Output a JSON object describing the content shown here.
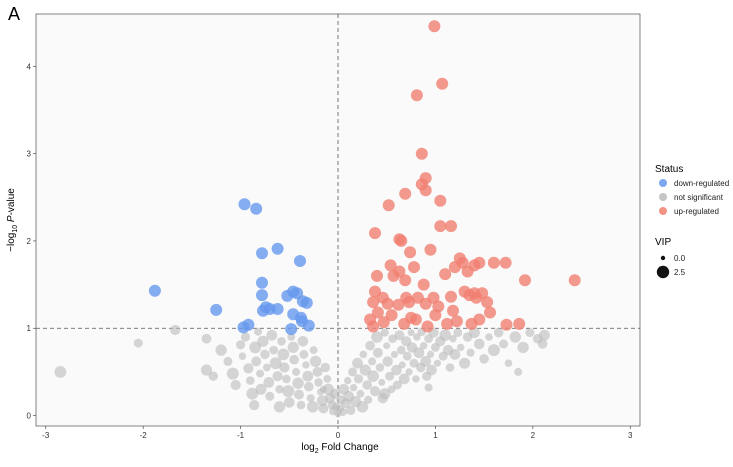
{
  "panel_label": "A",
  "chart_data": {
    "type": "scatter",
    "subtype": "volcano",
    "title": "",
    "xlabel_base": "log",
    "xlabel_sub": "2",
    "xlabel_rest": " Fold Change",
    "ylabel_neg": "−log",
    "ylabel_sub": "10",
    "ylabel_p": " P",
    "ylabel_rest": "-value",
    "xlim": [
      -3.1,
      3.1
    ],
    "ylim": [
      -0.12,
      4.6
    ],
    "x_ticks": [
      -3,
      -2,
      -1,
      0,
      1,
      2,
      3
    ],
    "y_ticks": [
      0,
      1,
      2,
      3,
      4
    ],
    "threshold_y": 1,
    "threshold_x": 0,
    "legend": {
      "status_title": "Status",
      "status_items": [
        {
          "label": "down-regulated",
          "color": "#6699EE"
        },
        {
          "label": "not significant",
          "color": "#BBBBBB"
        },
        {
          "label": "up-regulated",
          "color": "#F08070"
        }
      ],
      "vip_title": "VIP",
      "vip_items": [
        {
          "label": "0.0",
          "vip": 0.0
        },
        {
          "label": "2.5",
          "vip": 2.5
        }
      ]
    },
    "series": [
      {
        "name": "down-regulated",
        "color": "#6699EE",
        "points": [
          [
            -1.88,
            1.43
          ],
          [
            -1.25,
            1.21
          ],
          [
            -0.97,
            1.01
          ],
          [
            -0.92,
            1.04
          ],
          [
            -0.96,
            2.42
          ],
          [
            -0.84,
            2.37
          ],
          [
            -0.78,
            1.86
          ],
          [
            -0.78,
            1.52
          ],
          [
            -0.78,
            1.38
          ],
          [
            -0.74,
            1.24
          ],
          [
            -0.7,
            1.22
          ],
          [
            -0.77,
            1.2
          ],
          [
            -0.62,
            1.91
          ],
          [
            -0.62,
            1.22
          ],
          [
            -0.52,
            1.37
          ],
          [
            -0.46,
            1.42
          ],
          [
            -0.46,
            1.16
          ],
          [
            -0.39,
            1.77
          ],
          [
            -0.42,
            1.4
          ],
          [
            -0.36,
            1.31
          ],
          [
            -0.32,
            1.29
          ],
          [
            -0.37,
            1.08
          ],
          [
            -0.3,
            1.03
          ],
          [
            -0.38,
            1.12
          ],
          [
            -0.48,
            0.99
          ]
        ]
      },
      {
        "name": "up-regulated",
        "color": "#F08070",
        "points": [
          [
            0.99,
            4.46
          ],
          [
            1.07,
            3.8
          ],
          [
            0.81,
            3.67
          ],
          [
            0.86,
            3.0
          ],
          [
            0.9,
            2.72
          ],
          [
            0.86,
            2.65
          ],
          [
            0.9,
            2.58
          ],
          [
            0.69,
            2.54
          ],
          [
            1.05,
            2.46
          ],
          [
            0.52,
            2.41
          ],
          [
            0.38,
            2.09
          ],
          [
            1.05,
            2.17
          ],
          [
            1.16,
            2.17
          ],
          [
            0.63,
            2.02
          ],
          [
            0.65,
            2.0
          ],
          [
            0.74,
            1.87
          ],
          [
            0.95,
            1.9
          ],
          [
            0.54,
            1.72
          ],
          [
            0.63,
            1.65
          ],
          [
            0.78,
            1.7
          ],
          [
            0.4,
            1.6
          ],
          [
            0.57,
            1.6
          ],
          [
            0.69,
            1.55
          ],
          [
            0.88,
            1.5
          ],
          [
            1.1,
            1.62
          ],
          [
            1.2,
            1.7
          ],
          [
            1.25,
            1.8
          ],
          [
            1.28,
            1.75
          ],
          [
            1.33,
            1.65
          ],
          [
            1.4,
            1.72
          ],
          [
            1.45,
            1.75
          ],
          [
            1.6,
            1.75
          ],
          [
            1.72,
            1.75
          ],
          [
            1.92,
            1.55
          ],
          [
            2.43,
            1.55
          ],
          [
            0.38,
            1.42
          ],
          [
            0.46,
            1.35
          ],
          [
            0.36,
            1.3
          ],
          [
            0.51,
            1.28
          ],
          [
            0.62,
            1.27
          ],
          [
            0.7,
            1.35
          ],
          [
            0.73,
            1.3
          ],
          [
            0.82,
            1.35
          ],
          [
            0.9,
            1.28
          ],
          [
            0.98,
            1.35
          ],
          [
            1.03,
            1.25
          ],
          [
            1.16,
            1.36
          ],
          [
            1.3,
            1.42
          ],
          [
            1.35,
            1.38
          ],
          [
            1.4,
            1.4
          ],
          [
            1.42,
            1.35
          ],
          [
            1.48,
            1.4
          ],
          [
            1.53,
            1.3
          ],
          [
            1.56,
            1.18
          ],
          [
            0.33,
            1.1
          ],
          [
            0.41,
            1.18
          ],
          [
            0.47,
            1.07
          ],
          [
            0.55,
            1.15
          ],
          [
            0.68,
            1.05
          ],
          [
            0.75,
            1.12
          ],
          [
            0.8,
            1.1
          ],
          [
            0.92,
            1.02
          ],
          [
            1.0,
            1.15
          ],
          [
            1.12,
            1.05
          ],
          [
            1.22,
            1.08
          ],
          [
            1.37,
            1.05
          ],
          [
            1.45,
            1.1
          ],
          [
            1.73,
            1.04
          ],
          [
            1.86,
            1.05
          ],
          [
            0.36,
            1.02
          ],
          [
            1.18,
            1.2
          ]
        ]
      },
      {
        "name": "not significant",
        "color": "#BBBBBB",
        "points": [
          [
            -2.85,
            0.5
          ],
          [
            -2.05,
            0.83
          ],
          [
            -1.67,
            0.98
          ],
          [
            -1.35,
            0.52
          ],
          [
            -1.28,
            0.45
          ],
          [
            -1.35,
            0.88
          ],
          [
            -1.2,
            0.75
          ],
          [
            -1.13,
            0.62
          ],
          [
            -1.08,
            0.48
          ],
          [
            -1.05,
            0.35
          ],
          [
            -1.0,
            0.81
          ],
          [
            -0.98,
            0.68
          ],
          [
            -0.95,
            0.9
          ],
          [
            -0.92,
            0.54
          ],
          [
            -0.9,
            0.4
          ],
          [
            -0.88,
            0.25
          ],
          [
            -0.85,
            0.78
          ],
          [
            -0.84,
            0.62
          ],
          [
            -0.82,
            0.96
          ],
          [
            -0.8,
            0.48
          ],
          [
            -0.79,
            0.3
          ],
          [
            -0.77,
            0.85
          ],
          [
            -0.75,
            0.7
          ],
          [
            -0.73,
            0.55
          ],
          [
            -0.71,
            0.38
          ],
          [
            -0.7,
            0.22
          ],
          [
            -0.68,
            0.92
          ],
          [
            -0.66,
            0.75
          ],
          [
            -0.64,
            0.6
          ],
          [
            -0.62,
            0.45
          ],
          [
            -0.6,
            0.3
          ],
          [
            -0.58,
            0.85
          ],
          [
            -0.56,
            0.7
          ],
          [
            -0.55,
            0.55
          ],
          [
            -0.53,
            0.42
          ],
          [
            -0.51,
            0.28
          ],
          [
            -0.5,
            0.15
          ],
          [
            -0.48,
            0.9
          ],
          [
            -0.46,
            0.78
          ],
          [
            -0.45,
            0.64
          ],
          [
            -0.43,
            0.5
          ],
          [
            -0.41,
            0.37
          ],
          [
            -0.4,
            0.24
          ],
          [
            -0.38,
            0.12
          ],
          [
            -0.36,
            0.85
          ],
          [
            -0.35,
            0.7
          ],
          [
            -0.33,
            0.58
          ],
          [
            -0.31,
            0.45
          ],
          [
            -0.3,
            0.33
          ],
          [
            -0.28,
            0.2
          ],
          [
            -0.26,
            0.1
          ],
          [
            -0.25,
            0.75
          ],
          [
            -0.23,
            0.62
          ],
          [
            -0.21,
            0.5
          ],
          [
            -0.2,
            0.38
          ],
          [
            -0.18,
            0.27
          ],
          [
            -0.16,
            0.17
          ],
          [
            -0.15,
            0.08
          ],
          [
            -0.13,
            0.55
          ],
          [
            -0.11,
            0.42
          ],
          [
            -0.1,
            0.3
          ],
          [
            -0.08,
            0.2
          ],
          [
            -0.06,
            0.12
          ],
          [
            -0.05,
            0.05
          ],
          [
            -0.03,
            0.25
          ],
          [
            -0.02,
            0.1
          ],
          [
            0.0,
            0.02
          ],
          [
            0.02,
            0.08
          ],
          [
            0.03,
            0.18
          ],
          [
            0.05,
            0.04
          ],
          [
            0.06,
            0.3
          ],
          [
            0.08,
            0.14
          ],
          [
            0.1,
            0.4
          ],
          [
            0.11,
            0.22
          ],
          [
            0.13,
            0.06
          ],
          [
            0.15,
            0.5
          ],
          [
            0.16,
            0.32
          ],
          [
            0.18,
            0.16
          ],
          [
            0.2,
            0.6
          ],
          [
            0.21,
            0.42
          ],
          [
            0.23,
            0.25
          ],
          [
            0.25,
            0.1
          ],
          [
            0.26,
            0.7
          ],
          [
            0.28,
            0.52
          ],
          [
            0.3,
            0.35
          ],
          [
            0.31,
            0.18
          ],
          [
            0.33,
            0.8
          ],
          [
            0.35,
            0.62
          ],
          [
            0.36,
            0.45
          ],
          [
            0.38,
            0.28
          ],
          [
            0.4,
            0.9
          ],
          [
            0.41,
            0.72
          ],
          [
            0.43,
            0.55
          ],
          [
            0.45,
            0.38
          ],
          [
            0.46,
            0.2
          ],
          [
            0.48,
            0.95
          ],
          [
            0.5,
            0.8
          ],
          [
            0.51,
            0.62
          ],
          [
            0.53,
            0.45
          ],
          [
            0.55,
            0.3
          ],
          [
            0.56,
            0.88
          ],
          [
            0.58,
            0.7
          ],
          [
            0.6,
            0.52
          ],
          [
            0.61,
            0.35
          ],
          [
            0.63,
            0.92
          ],
          [
            0.65,
            0.75
          ],
          [
            0.66,
            0.58
          ],
          [
            0.68,
            0.42
          ],
          [
            0.7,
            0.85
          ],
          [
            0.71,
            0.68
          ],
          [
            0.73,
            0.5
          ],
          [
            0.75,
            0.95
          ],
          [
            0.76,
            0.78
          ],
          [
            0.78,
            0.6
          ],
          [
            0.8,
            0.42
          ],
          [
            0.81,
            0.9
          ],
          [
            0.83,
            0.72
          ],
          [
            0.85,
            0.55
          ],
          [
            0.86,
            0.96
          ],
          [
            0.88,
            0.8
          ],
          [
            0.9,
            0.62
          ],
          [
            0.91,
            0.45
          ],
          [
            0.93,
            0.88
          ],
          [
            0.95,
            0.7
          ],
          [
            0.96,
            0.52
          ],
          [
            0.98,
            0.95
          ],
          [
            1.0,
            0.78
          ],
          [
            1.02,
            0.6
          ],
          [
            1.05,
            0.85
          ],
          [
            1.08,
            0.68
          ],
          [
            1.1,
            0.92
          ],
          [
            1.13,
            0.75
          ],
          [
            1.15,
            0.55
          ],
          [
            1.18,
            0.88
          ],
          [
            1.2,
            0.7
          ],
          [
            1.23,
            0.95
          ],
          [
            1.26,
            0.78
          ],
          [
            1.3,
            0.6
          ],
          [
            1.33,
            0.9
          ],
          [
            1.36,
            0.72
          ],
          [
            1.4,
            0.95
          ],
          [
            1.45,
            0.82
          ],
          [
            1.5,
            0.65
          ],
          [
            1.55,
            0.9
          ],
          [
            1.6,
            0.75
          ],
          [
            1.65,
            0.95
          ],
          [
            1.7,
            0.82
          ],
          [
            1.75,
            0.6
          ],
          [
            1.82,
            0.9
          ],
          [
            1.9,
            0.78
          ],
          [
            1.97,
            0.95
          ],
          [
            2.05,
            0.88
          ],
          [
            2.12,
            0.92
          ],
          [
            2.1,
            0.82
          ],
          [
            1.85,
            0.5
          ],
          [
            0.48,
            0.25
          ],
          [
            -0.6,
            0.1
          ],
          [
            -0.86,
            0.12
          ],
          [
            0.93,
            0.32
          ],
          [
            -0.15,
            0.3
          ]
        ]
      }
    ]
  }
}
